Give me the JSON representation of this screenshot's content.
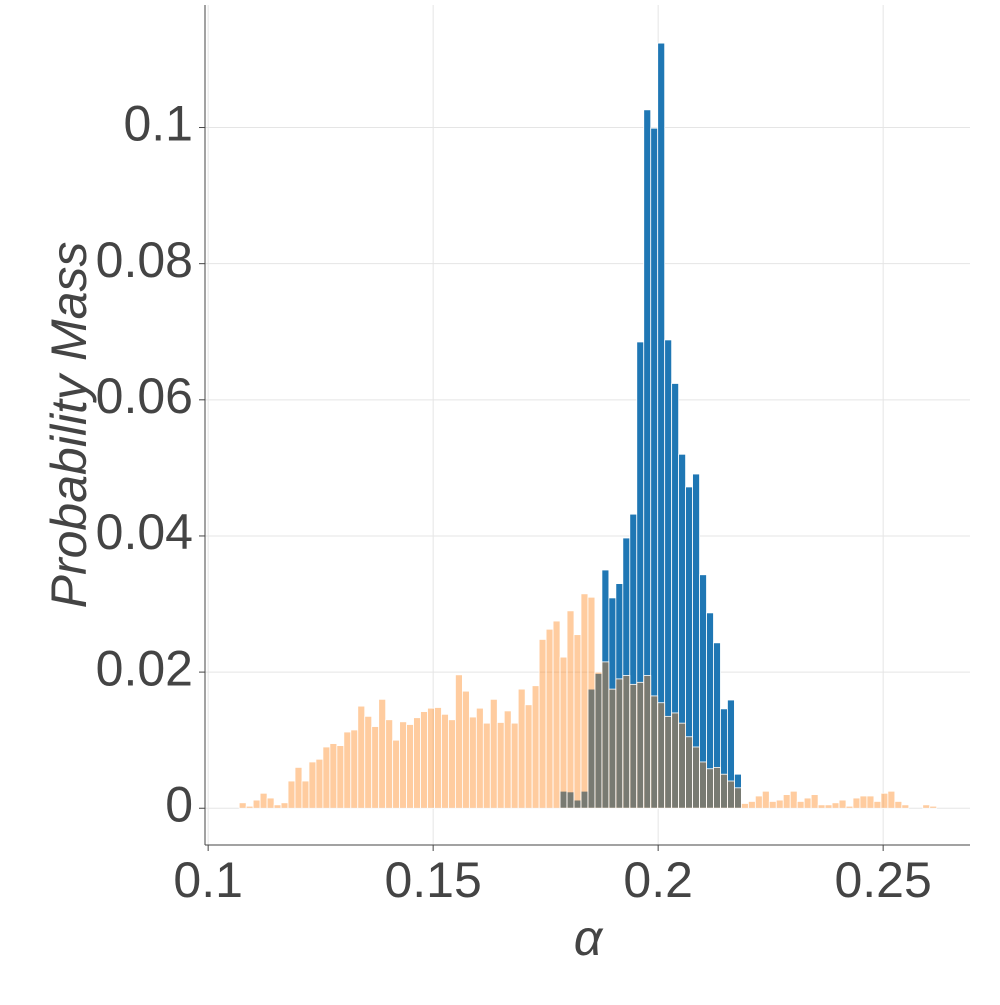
{
  "chart_data": {
    "type": "histogram",
    "x_label": "α",
    "y_label": "Probability Mass",
    "xlim": [
      0.0993,
      0.2693
    ],
    "ylim": [
      -0.0054,
      0.118
    ],
    "xticks": [
      0.1,
      0.15,
      0.2,
      0.25
    ],
    "yticks": [
      0,
      0.02,
      0.04,
      0.06,
      0.08,
      0.1
    ],
    "grid": true,
    "series": [
      {
        "color": "#1f77b4",
        "opacity": 1,
        "bins": [
          0.1782,
          0.17975,
          0.1813,
          0.18285,
          0.1844,
          0.18595,
          0.1875,
          0.18905,
          0.1906,
          0.19215,
          0.1937,
          0.19525,
          0.1968,
          0.19835,
          0.1999,
          0.20145,
          0.203,
          0.20455,
          0.2061,
          0.20765,
          0.2092,
          0.21075,
          0.2123,
          0.21385,
          0.2154,
          0.21695,
          0.2185
        ],
        "values": [
          0.0025,
          0.0024,
          0.0012,
          0.0025,
          0.0175,
          0.0198,
          0.035,
          0.0309,
          0.033,
          0.0397,
          0.0432,
          0.0685,
          0.1026,
          0.0999,
          0.1124,
          0.0688,
          0.0624,
          0.052,
          0.0472,
          0.0491,
          0.0343,
          0.0287,
          0.0243,
          0.0146,
          0.0159,
          0.005
        ]
      },
      {
        "color": "#ff7f0e",
        "opacity": 0.4,
        "bins": [
          0.1069,
          0.10845,
          0.11,
          0.11155,
          0.1131,
          0.11465,
          0.1162,
          0.11775,
          0.1193,
          0.12085,
          0.1224,
          0.12395,
          0.1255,
          0.12705,
          0.1286,
          0.13015,
          0.1317,
          0.13325,
          0.1348,
          0.13635,
          0.1379,
          0.13945,
          0.141,
          0.14255,
          0.1441,
          0.14565,
          0.1472,
          0.14875,
          0.1503,
          0.15185,
          0.1534,
          0.15495,
          0.1565,
          0.15805,
          0.1596,
          0.16115,
          0.1627,
          0.16425,
          0.1658,
          0.16735,
          0.1689,
          0.17045,
          0.172,
          0.17355,
          0.1751,
          0.17665,
          0.1782,
          0.17975,
          0.1813,
          0.18285,
          0.1844,
          0.18595,
          0.1875,
          0.18905,
          0.1906,
          0.19215,
          0.1937,
          0.19525,
          0.1968,
          0.19835,
          0.1999,
          0.20145,
          0.203,
          0.20455,
          0.2061,
          0.20765,
          0.2092,
          0.21075,
          0.2123,
          0.21385,
          0.2154,
          0.21695,
          0.2185,
          0.22005,
          0.2216,
          0.22315,
          0.2247,
          0.22625,
          0.2278,
          0.22935,
          0.2309,
          0.23245,
          0.234,
          0.23555,
          0.2371,
          0.23865,
          0.2402,
          0.24175,
          0.2433,
          0.24485,
          0.2464,
          0.24795,
          0.2495,
          0.25105,
          0.2526,
          0.25415,
          0.2557,
          0.25725,
          0.2588,
          0.26035,
          0.2619
        ],
        "values": [
          0.0008,
          0.0003,
          0.0012,
          0.0022,
          0.0015,
          0.0005,
          0.0008,
          0.004,
          0.006,
          0.004,
          0.0068,
          0.0072,
          0.009,
          0.0095,
          0.0092,
          0.0112,
          0.0115,
          0.015,
          0.0135,
          0.012,
          0.016,
          0.013,
          0.01,
          0.0127,
          0.0123,
          0.0133,
          0.0142,
          0.0147,
          0.0148,
          0.0138,
          0.013,
          0.0196,
          0.0172,
          0.0134,
          0.0147,
          0.0125,
          0.016,
          0.0126,
          0.0143,
          0.0125,
          0.0175,
          0.0152,
          0.018,
          0.0248,
          0.0263,
          0.0275,
          0.0222,
          0.029,
          0.0255,
          0.0315,
          0.031,
          0.02,
          0.0215,
          0.0175,
          0.019,
          0.0195,
          0.0182,
          0.0185,
          0.0195,
          0.0165,
          0.0155,
          0.0135,
          0.014,
          0.0125,
          0.0105,
          0.009,
          0.0068,
          0.0058,
          0.006,
          0.005,
          0.004,
          0.003,
          0.0007,
          0.001,
          0.0018,
          0.0025,
          0.001,
          0.0012,
          0.002,
          0.0025,
          0.001,
          0.0015,
          0.002,
          0.0005,
          0.0005,
          0.0008,
          0.0012,
          0.0003,
          0.0015,
          0.0018,
          0.0018,
          0.001,
          0.0022,
          0.0025,
          0.001,
          0.0005,
          0,
          0,
          0.0005,
          0.0003
        ]
      }
    ]
  }
}
